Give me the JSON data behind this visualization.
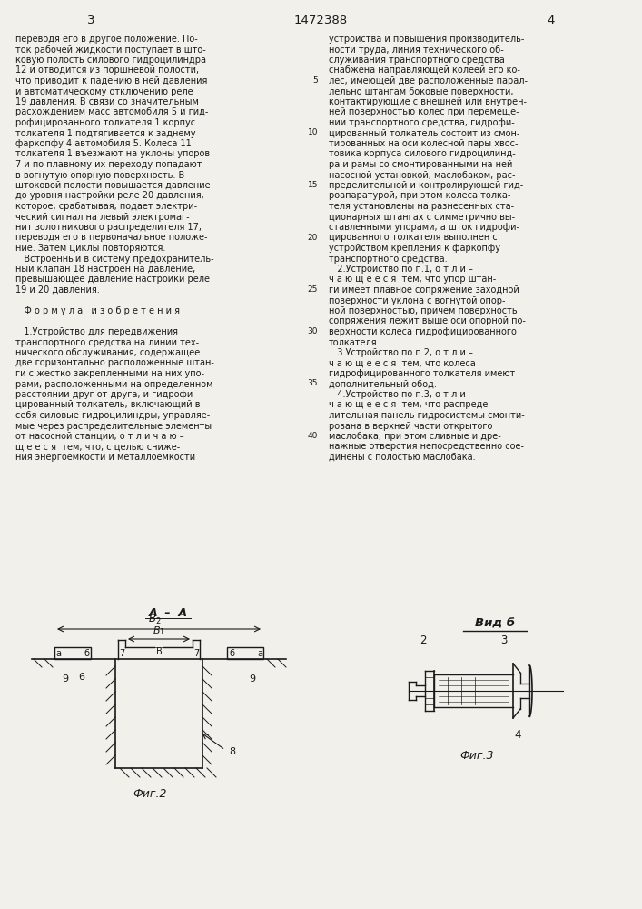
{
  "page_color": "#f2f0eb",
  "text_color": "#1a1a1a",
  "header_number_left": "3",
  "header_title": "1472388",
  "header_number_right": "4",
  "left_column_text": [
    "переводя его в другое положение. По-",
    "ток рабочей жидкости поступает в што-",
    "ковую полость силового гидроцилиндра",
    "12 и отводится из поршневой полости,",
    "что приводит к падению в ней давления",
    "и автоматическому отключению реле",
    "19 давления. В связи со значительным",
    "расхождением масс автомобиля 5 и гид-",
    "рофицированного толкателя 1 корпус",
    "толкателя 1 подтягивается к заднему",
    "фаркопфу 4 автомобиля 5. Колеса 11",
    "толкателя 1 въезжают на уклоны упоров",
    "7 и по плавному их переходу попадают",
    "в вогнутую опорную поверхность. В",
    "штоковой полости повышается давление",
    "до уровня настройки реле 20 давления,",
    "которое, срабатывая, подает электри-",
    "ческий сигнал на левый электромаг-",
    "нит золотникового распределителя 17,",
    "переводя его в первоначальное положе-",
    "ние. Затем циклы повторяются.",
    "   Встроенный в систему предохранитель-",
    "ный клапан 18 настроен на давление,",
    "превышающее давление настройки реле",
    "19 и 20 давления.",
    "",
    "   Ф о р м у л а   и з о б р е т е н и я",
    "",
    "   1.Устройство для передвижения",
    "транспортного средства на линии тех-",
    "нического.обслуживания, содержащее",
    "две горизонтально расположенные штан-",
    "ги с жестко закрепленными на них упо-",
    "рами, расположенными на определенном",
    "расстоянии друг от друга, и гидрофи-",
    "цированный толкатель, включающий в",
    "себя силовые гидроцилиндры, управляе-",
    "мые через распределительные элементы",
    "от насосной станции, о т л и ч а ю –",
    "щ е е с я  тем, что, с целью сниже-",
    "ния энергоемкости и металлоемкости"
  ],
  "right_column_text": [
    "устройства и повышения производитель-",
    "ности труда, линия технического об-",
    "служивания транспортного средства",
    "снабжена направляющей колеей его ко-",
    "лес, имеющей две расположенные парал-",
    "лельно штангам боковые поверхности,",
    "контактирующие с внешней или внутрен-",
    "ней поверхностью колес при перемеще-",
    "нии транспортного средства, гидрофи-",
    "цированный толкатель состоит из смон-",
    "тированных на оси колесной пары хвос-",
    "товика корпуса силового гидроцилинд-",
    "ра и рамы со смонтированными на ней",
    "насосной установкой, маслобаком, рас-",
    "пределительной и контролирующей гид-",
    "роапаратурой, при этом колеса толка-",
    "теля установлены на разнесенных ста-",
    "ционарных штангах с симметрично вы-",
    "ставленными упорами, а шток гидрофи-",
    "цированного толкателя выполнен с",
    "устройством крепления к фаркопфу",
    "транспортного средства.",
    "   2.Устройство по п.1, о т л и –",
    "ч а ю щ е е с я  тем, что упор штан-",
    "ги имеет плавное сопряжение заходной",
    "поверхности уклона с вогнутой опор-",
    "ной поверхностью, причем поверхность",
    "сопряжения лежит выше оси опорной по-",
    "верхности колеса гидрофицированного",
    "толкателя.",
    "   3.Устройство по п.2, о т л и –",
    "ч а ю щ е е с я  тем, что колеса",
    "гидрофицированного толкателя имеют",
    "дополнительный обод.",
    "   4.Устройство по п.3, о т л и –",
    "ч а ю щ е е с я  тем, что распреде-",
    "лительная панель гидросистемы смонти-",
    "рована в верхней части открытого",
    "маслобака, при этом сливные и дре-",
    "нажные отверстия непосредственно сое-",
    "динены с полостью маслобака."
  ],
  "line_numbers": [
    [
      4,
      5
    ],
    [
      9,
      10
    ],
    [
      14,
      15
    ],
    [
      19,
      20
    ],
    [
      24,
      25
    ],
    [
      28,
      30
    ],
    [
      33,
      35
    ],
    [
      38,
      40
    ]
  ],
  "fig2_caption": "Фиг.2",
  "fig3_caption": "Фиг.3",
  "vid_b_label": "Вид б"
}
